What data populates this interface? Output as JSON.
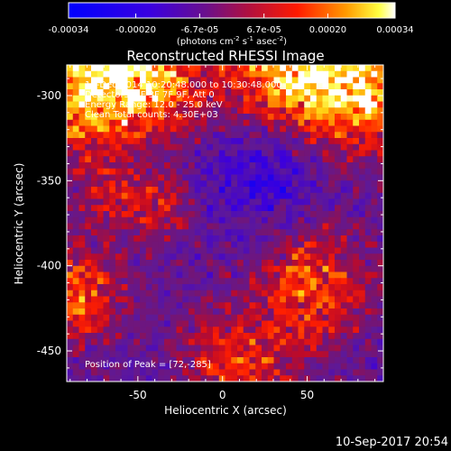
{
  "colorbar": {
    "ticks": [
      "-0.00034",
      "-0.00020",
      "-6.7e-05",
      "6.7e-05",
      "0.00020",
      "0.00034"
    ],
    "units_main": "(photons cm",
    "units_exp1": "-2",
    "units_s": " s",
    "units_exp2": "-1",
    "units_asec": " asec",
    "units_exp3": "-2",
    "units_close": ")"
  },
  "chart_data": {
    "type": "heatmap",
    "title": "Reconstructed RHESSI Image",
    "xlabel": "Heliocentric X (arcsec)",
    "ylabel": "Heliocentric Y (arcsec)",
    "xlim": [
      -92,
      95
    ],
    "ylim": [
      -468,
      -282
    ],
    "xticks": [
      -50,
      0,
      50
    ],
    "yticks": [
      -300,
      -350,
      -400,
      -450
    ],
    "colorbar_range": [
      -0.00034,
      0.00034
    ],
    "colormap": "blue-purple-red-yellow-white",
    "annotations": [
      "17-Dec-2014 10:20:48.000 to 10:30:48.000",
      "Detectors: 1F 3F 7F 9F, Att 0",
      "Energy Range: 12.0 - 25.0 keV",
      "Clean    Total counts: 4.30E+03"
    ],
    "peak_label": "Position of Peak = [72,-285]"
  },
  "timestamp": "10-Sep-2017 20:54",
  "colors": {
    "background": "#000000",
    "low": "#0000ff",
    "mid": "#4b0f8c",
    "high": "#ff0000",
    "peak": "#ffffff"
  }
}
